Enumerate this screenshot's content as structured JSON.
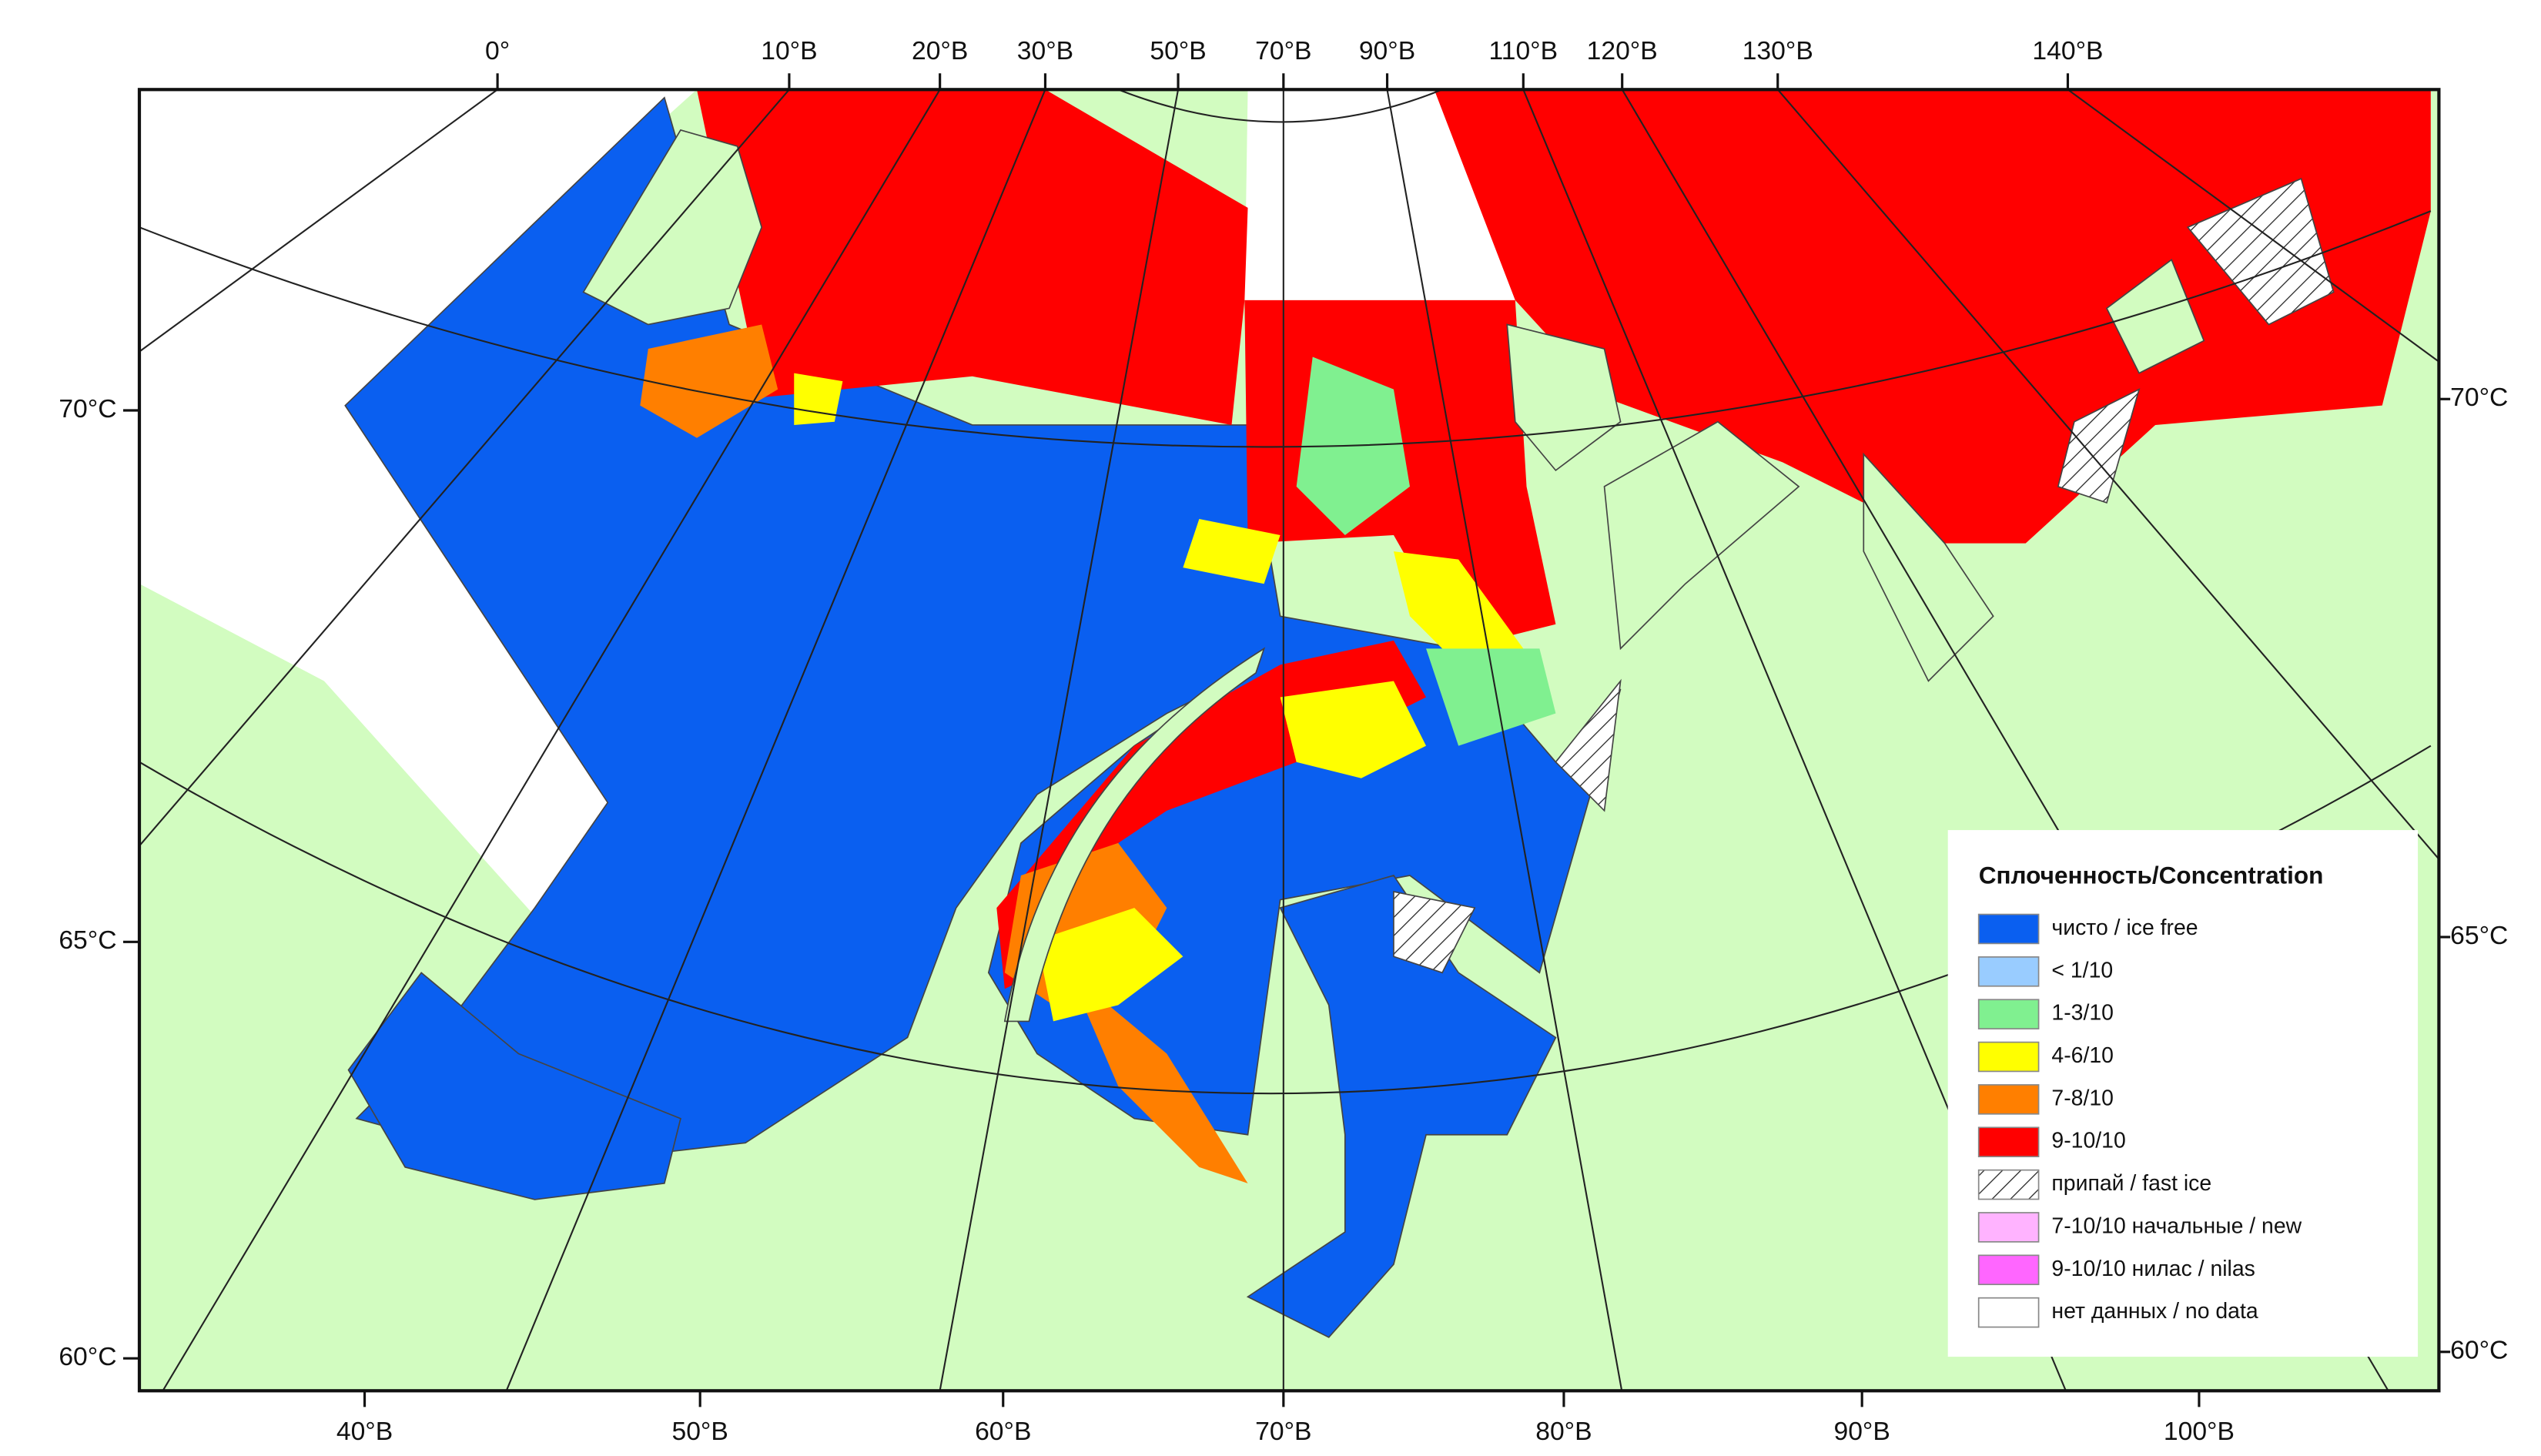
{
  "map": {
    "top_labels": [
      "0°",
      "10°В",
      "20°В",
      "30°В",
      "50°В",
      "70°В",
      "90°В",
      "110°В",
      "120°В",
      "130°В",
      "140°В"
    ],
    "bottom_labels": [
      "40°В",
      "50°В",
      "60°В",
      "70°В",
      "80°В",
      "90°В",
      "100°В"
    ],
    "left_labels": [
      "70°С",
      "65°С",
      "60°С"
    ],
    "right_labels": [
      "70°С",
      "65°С",
      "60°С"
    ],
    "legend": {
      "title": "Сплоченность/Concentration",
      "items": [
        "чисто / ice free",
        "< 1/10",
        "1-3/10",
        "4-6/10",
        "7-8/10",
        "9-10/10",
        "припай / fast ice",
        "7-10/10 начальные / new",
        "9-10/10 нилас / nilas",
        "нет данных / no data"
      ]
    }
  }
}
